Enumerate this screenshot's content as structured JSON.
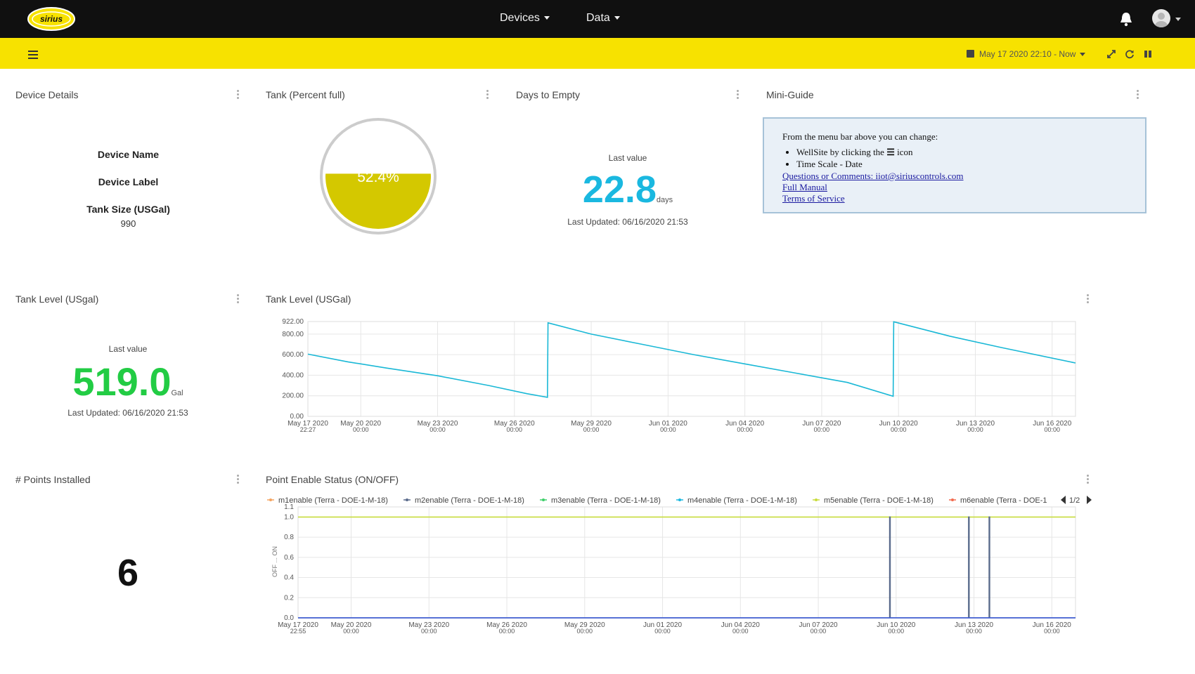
{
  "header": {
    "logo_text": "sirius",
    "nav": [
      {
        "label": "Devices"
      },
      {
        "label": "Data"
      }
    ]
  },
  "toolbar": {
    "date_range": "May 17 2020 22:10 - Now"
  },
  "device_details": {
    "title": "Device Details",
    "device_name_label": "Device Name",
    "device_label_label": "Device Label",
    "tank_size_label": "Tank Size (USGal)",
    "tank_size_value": "990"
  },
  "tank_percent": {
    "title": "Tank (Percent full)",
    "value_text": "52.4%",
    "fraction": 0.524,
    "fill_color": "#d4c800"
  },
  "days_to_empty": {
    "title": "Days to Empty",
    "caption": "Last value",
    "value": "22.8",
    "unit": "days",
    "updated": "Last Updated: 06/16/2020 21:53",
    "color": "#1ab8e0"
  },
  "mini_guide": {
    "title": "Mini-Guide",
    "intro": "From the menu bar above you can change:",
    "bullet1_pre": "WellSite by clicking the",
    "bullet1_post": "icon",
    "bullet2": "Time Scale - Date",
    "link_questions": "Questions or Comments: iiot@siriuscontrols.com",
    "link_manual": "Full Manual",
    "link_terms": "Terms of Service"
  },
  "tank_level_stat": {
    "title": "Tank Level (USgal)",
    "caption": "Last value",
    "value": "519.0",
    "unit": "Gal",
    "updated": "Last Updated: 06/16/2020 21:53",
    "color": "#22cc44"
  },
  "points_installed": {
    "title": "# Points Installed",
    "value": "6"
  },
  "charts": {
    "tank_title": "Tank Level (USGal)",
    "status_title": "Point Enable Status (ON/OFF)",
    "legend_page": "1/2",
    "status_ylabel": "OFF  ...  ON"
  },
  "chart_data": [
    {
      "type": "line",
      "title": "Tank Level (USGal)",
      "x_start": "2020-05-17 22:27",
      "x_end": "2020-06-16 21:53",
      "ylim": [
        0,
        922
      ],
      "yticks": [
        "922.00",
        "800.00",
        "600.00",
        "400.00",
        "200.00",
        "0.00"
      ],
      "xticks": [
        {
          "date": "2020-05-17 22:27",
          "l1": "May 17 2020",
          "l2": "22:27"
        },
        {
          "date": "2020-05-20 00:00",
          "l1": "May 20 2020",
          "l2": "00:00"
        },
        {
          "date": "2020-05-23 00:00",
          "l1": "May 23 2020",
          "l2": "00:00"
        },
        {
          "date": "2020-05-26 00:00",
          "l1": "May 26 2020",
          "l2": "00:00"
        },
        {
          "date": "2020-05-29 00:00",
          "l1": "May 29 2020",
          "l2": "00:00"
        },
        {
          "date": "2020-06-01 00:00",
          "l1": "Jun 01 2020",
          "l2": "00:00"
        },
        {
          "date": "2020-06-04 00:00",
          "l1": "Jun 04 2020",
          "l2": "00:00"
        },
        {
          "date": "2020-06-07 00:00",
          "l1": "Jun 07 2020",
          "l2": "00:00"
        },
        {
          "date": "2020-06-10 00:00",
          "l1": "Jun 10 2020",
          "l2": "00:00"
        },
        {
          "date": "2020-06-13 00:00",
          "l1": "Jun 13 2020",
          "l2": "00:00"
        },
        {
          "date": "2020-06-16 00:00",
          "l1": "Jun 16 2020",
          "l2": "00:00"
        }
      ],
      "series": [
        {
          "color": "#1ab8d6",
          "points": [
            [
              "2020-05-17 22:27",
              605
            ],
            [
              "2020-05-19 12:00",
              530
            ],
            [
              "2020-05-21 00:00",
              470
            ],
            [
              "2020-05-23 00:00",
              395
            ],
            [
              "2020-05-25 00:00",
              300
            ],
            [
              "2020-05-26 12:00",
              220
            ],
            [
              "2020-05-27 07:00",
              185
            ],
            [
              "2020-05-27 07:30",
              910
            ],
            [
              "2020-05-29 00:00",
              800
            ],
            [
              "2020-05-31 00:00",
              700
            ],
            [
              "2020-06-02 00:00",
              600
            ],
            [
              "2020-06-04 00:00",
              510
            ],
            [
              "2020-06-06 00:00",
              420
            ],
            [
              "2020-06-08 00:00",
              330
            ],
            [
              "2020-06-09 19:00",
              195
            ],
            [
              "2020-06-09 19:30",
              920
            ],
            [
              "2020-06-12 00:00",
              780
            ],
            [
              "2020-06-14 00:00",
              670
            ],
            [
              "2020-06-16 21:53",
              519
            ]
          ]
        }
      ]
    },
    {
      "type": "line",
      "title": "Point Enable Status (ON/OFF)",
      "ylabel": "OFF ... ON",
      "x_start": "2020-05-17 22:55",
      "x_end": "2020-06-16 21:53",
      "ylim": [
        0,
        1.1
      ],
      "yticks": [
        "1.1",
        "1.0",
        "0.8",
        "0.6",
        "0.4",
        "0.2",
        "0.0"
      ],
      "xticks": [
        {
          "date": "2020-05-17 22:55",
          "l1": "May 17 2020",
          "l2": "22:55"
        },
        {
          "date": "2020-05-20 00:00",
          "l1": "May 20 2020",
          "l2": "00:00"
        },
        {
          "date": "2020-05-23 00:00",
          "l1": "May 23 2020",
          "l2": "00:00"
        },
        {
          "date": "2020-05-26 00:00",
          "l1": "May 26 2020",
          "l2": "00:00"
        },
        {
          "date": "2020-05-29 00:00",
          "l1": "May 29 2020",
          "l2": "00:00"
        },
        {
          "date": "2020-06-01 00:00",
          "l1": "Jun 01 2020",
          "l2": "00:00"
        },
        {
          "date": "2020-06-04 00:00",
          "l1": "Jun 04 2020",
          "l2": "00:00"
        },
        {
          "date": "2020-06-07 00:00",
          "l1": "Jun 07 2020",
          "l2": "00:00"
        },
        {
          "date": "2020-06-10 00:00",
          "l1": "Jun 10 2020",
          "l2": "00:00"
        },
        {
          "date": "2020-06-13 00:00",
          "l1": "Jun 13 2020",
          "l2": "00:00"
        },
        {
          "date": "2020-06-16 00:00",
          "l1": "Jun 16 2020",
          "l2": "00:00"
        }
      ],
      "legend": [
        {
          "name": "m1enable  (Terra - DOE-1-M-18)",
          "color": "#f4a460"
        },
        {
          "name": "m2enable  (Terra - DOE-1-M-18)",
          "color": "#5a6b8c"
        },
        {
          "name": "m3enable  (Terra - DOE-1-M-18)",
          "color": "#3ecf6a"
        },
        {
          "name": "m4enable  (Terra - DOE-1-M-18)",
          "color": "#1ab8e0"
        },
        {
          "name": "m5enable  (Terra - DOE-1-M-18)",
          "color": "#c8dc3c"
        },
        {
          "name": "m6enable  (Terra - DOE-1",
          "color": "#f26b4f"
        }
      ],
      "series": [
        {
          "color": "#c8dc3c",
          "points": [
            [
              "2020-05-17 22:55",
              1.0
            ],
            [
              "2020-06-16 21:53",
              1.0
            ]
          ]
        },
        {
          "color": "#5a6b8c",
          "points": [
            [
              "2020-05-17 22:55",
              0.0
            ],
            [
              "2020-06-09 18:00",
              0.0
            ],
            [
              "2020-06-09 18:00",
              1.0
            ],
            [
              "2020-06-09 18:30",
              1.0
            ],
            [
              "2020-06-09 18:30",
              0.0
            ],
            [
              "2020-06-12 19:00",
              0.0
            ],
            [
              "2020-06-12 19:00",
              1.0
            ],
            [
              "2020-06-12 19:30",
              1.0
            ],
            [
              "2020-06-12 19:30",
              0.0
            ],
            [
              "2020-06-13 14:00",
              0.0
            ],
            [
              "2020-06-13 14:00",
              1.0
            ],
            [
              "2020-06-13 14:30",
              1.0
            ],
            [
              "2020-06-13 14:30",
              0.0
            ],
            [
              "2020-06-16 21:53",
              0.0
            ]
          ]
        },
        {
          "color": "#3b5bdb",
          "points": [
            [
              "2020-05-17 22:55",
              0.0
            ],
            [
              "2020-06-16 21:53",
              0.0
            ]
          ]
        }
      ]
    }
  ]
}
